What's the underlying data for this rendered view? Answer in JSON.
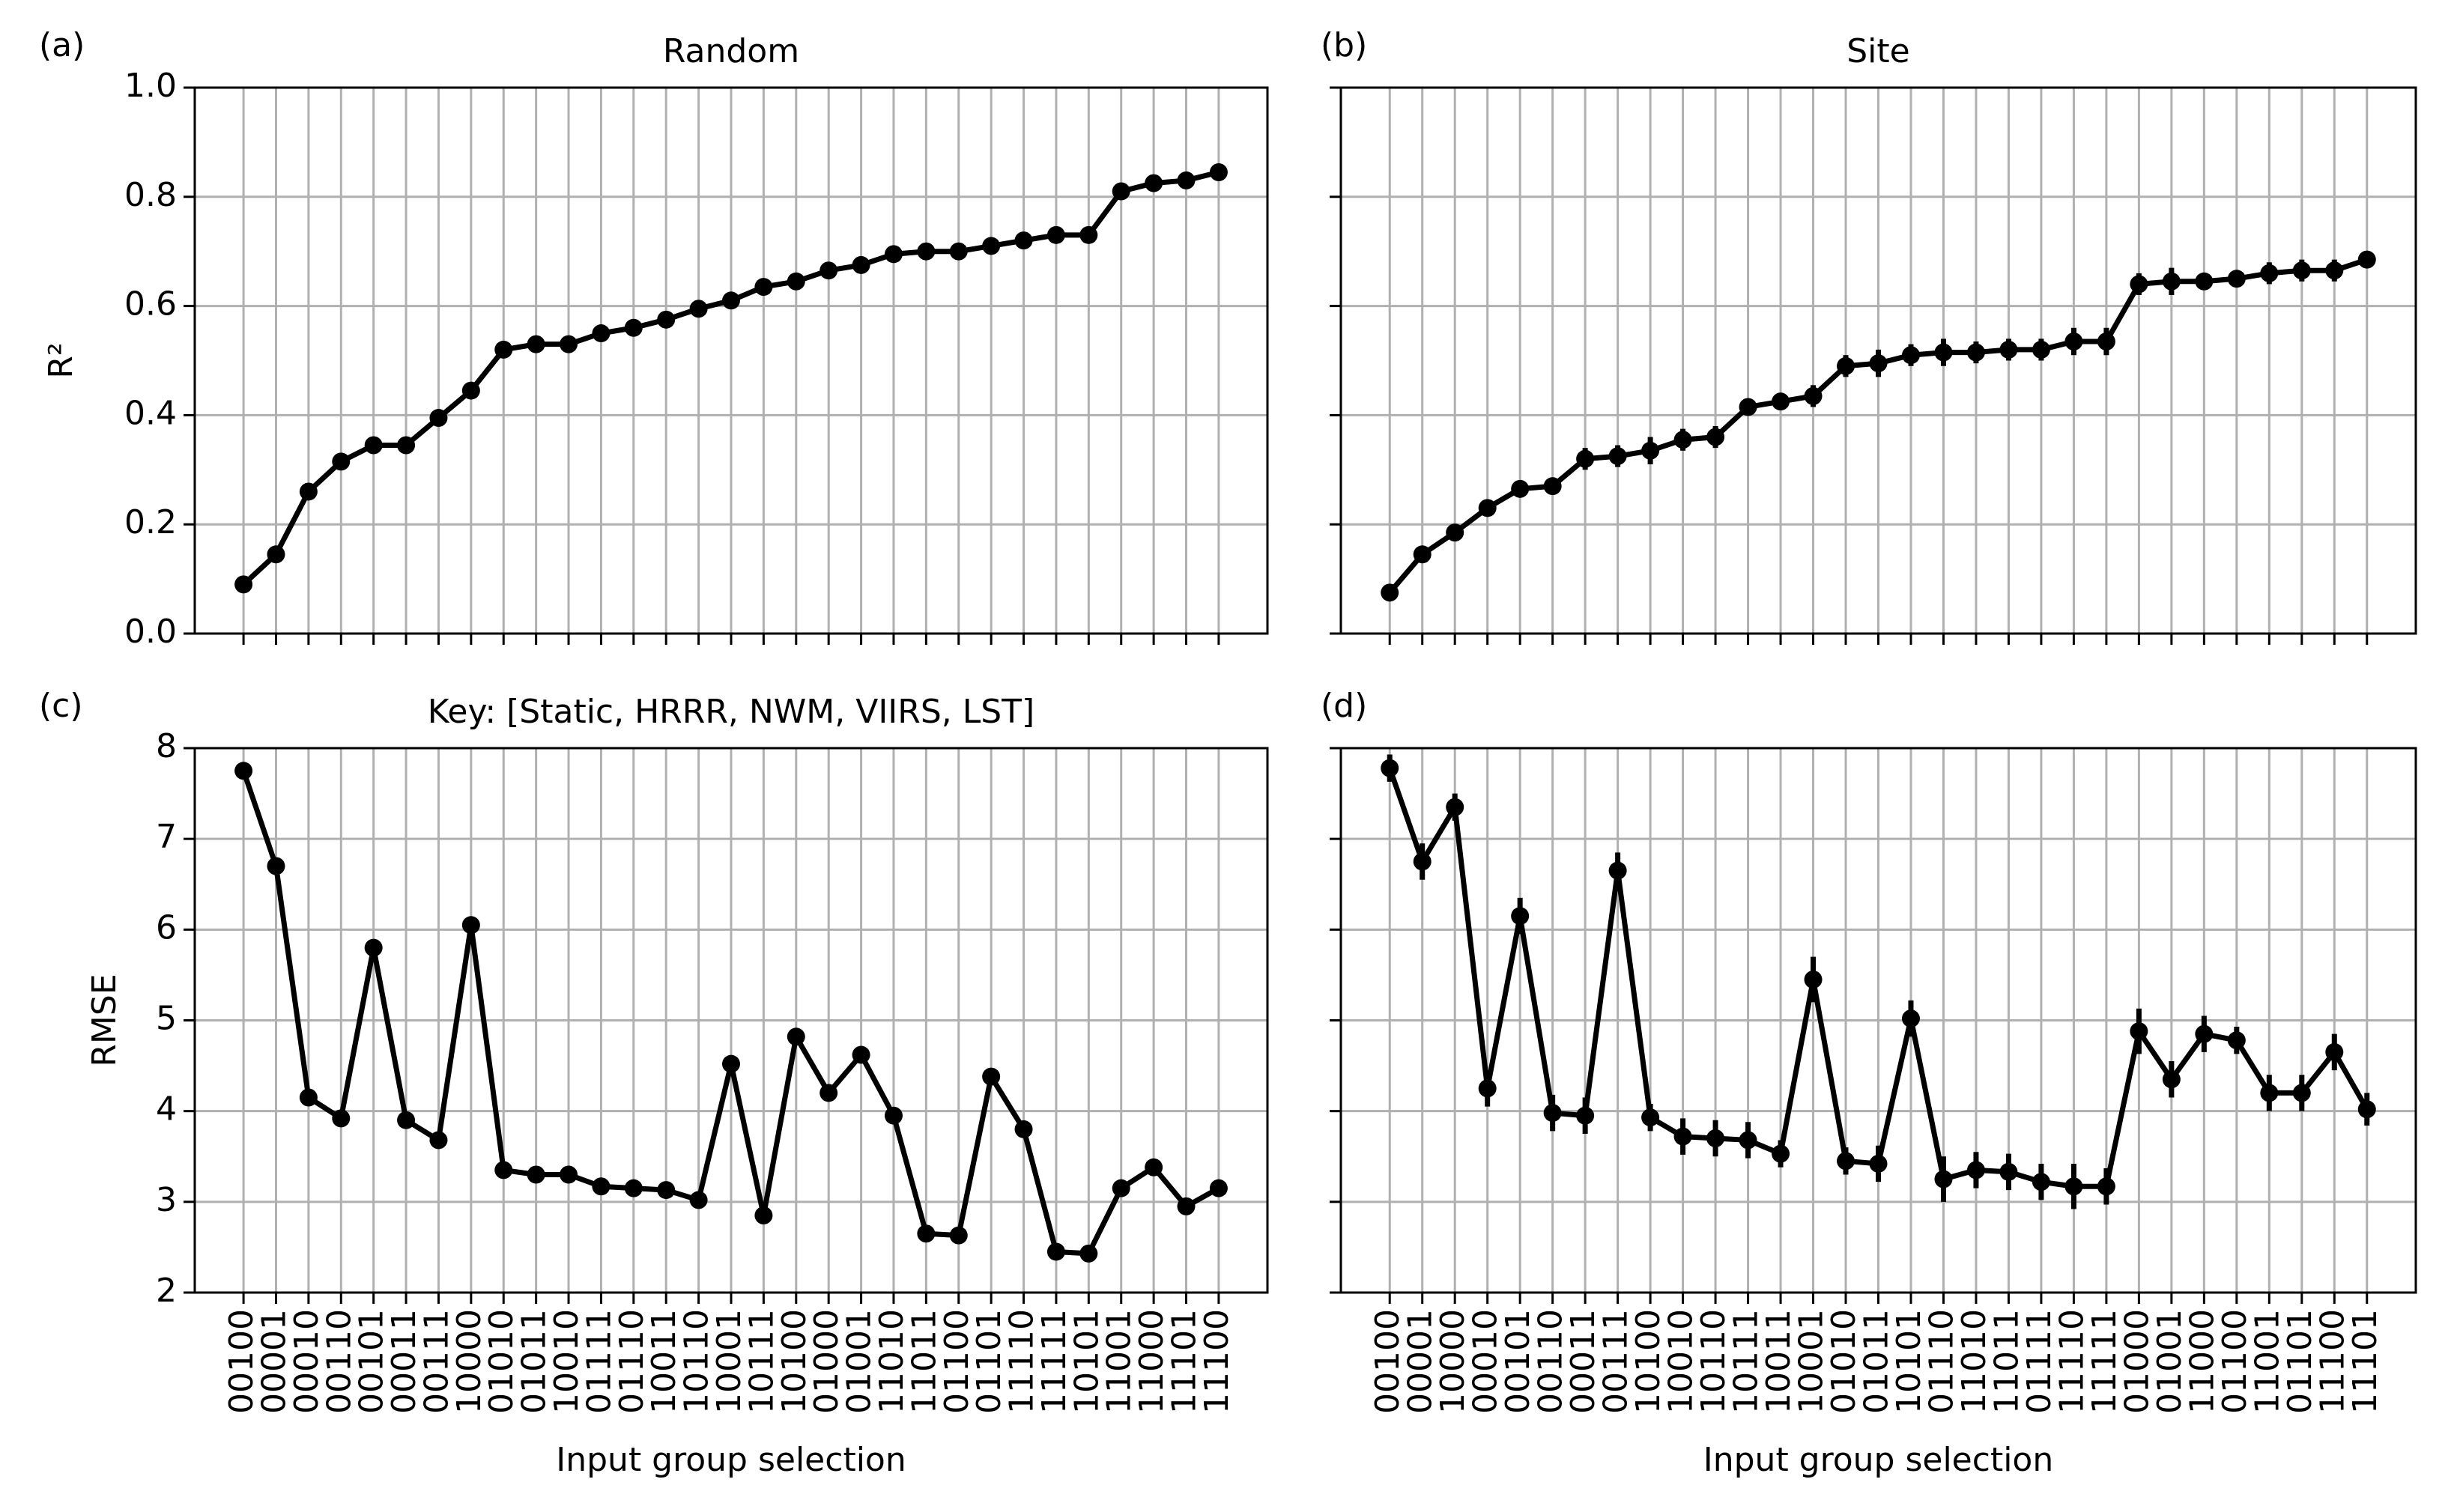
{
  "chart_data": [
    {
      "type": "line",
      "panel_label": "(a)",
      "title": "Random",
      "ylabel": "R²",
      "color": "#000000",
      "grid": true,
      "xtick_labels": false,
      "values": [
        0.09,
        0.145,
        0.26,
        0.315,
        0.345,
        0.345,
        0.395,
        0.445,
        0.52,
        0.53,
        0.53,
        0.55,
        0.56,
        0.575,
        0.595,
        0.61,
        0.635,
        0.645,
        0.665,
        0.675,
        0.695,
        0.7,
        0.7,
        0.71,
        0.72,
        0.73,
        0.73,
        0.81,
        0.825,
        0.83,
        0.845
      ],
      "ylim": [
        0,
        1
      ],
      "yticks": [
        {
          "value": 0,
          "label": "0.0"
        },
        0.2,
        0.4,
        0.6,
        0.8,
        {
          "value": 1,
          "label": "1.0"
        }
      ]
    },
    {
      "type": "line",
      "panel_label": "(b)",
      "title": "Site",
      "color": "#000000",
      "grid": true,
      "xtick_labels": false,
      "ytick_labels": false,
      "values": [
        0.075,
        0.145,
        0.185,
        0.23,
        0.265,
        0.27,
        0.32,
        0.325,
        0.335,
        0.355,
        0.36,
        0.415,
        0.425,
        0.435,
        0.49,
        0.495,
        0.51,
        0.515,
        0.515,
        0.52,
        0.52,
        0.535,
        0.535,
        0.64,
        0.645,
        0.645,
        0.65,
        0.66,
        0.665,
        0.665,
        0.685
      ],
      "errors": [
        0.015,
        0.015,
        0.015,
        0.015,
        0.015,
        0.015,
        0.02,
        0.02,
        0.025,
        0.02,
        0.02,
        0.015,
        0.015,
        0.02,
        0.02,
        0.025,
        0.02,
        0.025,
        0.02,
        0.02,
        0.02,
        0.025,
        0.025,
        0.02,
        0.025,
        0.015,
        0.015,
        0.02,
        0.02,
        0.02,
        0.015
      ],
      "ylim": [
        0,
        1
      ],
      "yticks": [
        {
          "value": 0,
          "label": "0.0"
        },
        0.2,
        0.4,
        0.6,
        0.8,
        {
          "value": 1,
          "label": "1.0"
        }
      ]
    },
    {
      "type": "line",
      "panel_label": "(c)",
      "title": "Key: [Static, HRRR, NWM, VIIRS, LST]",
      "ylabel": "RMSE",
      "xlabel": "Input group selection",
      "color": "#000000",
      "grid": true,
      "categories": [
        "00100",
        "00001",
        "00010",
        "00110",
        "00101",
        "00011",
        "00111",
        "10000",
        "01010",
        "01011",
        "10010",
        "01111",
        "01110",
        "10011",
        "10110",
        "10001",
        "10111",
        "10100",
        "01000",
        "01001",
        "11010",
        "11011",
        "01100",
        "01101",
        "11110",
        "11111",
        "10101",
        "11001",
        "11000",
        "11101",
        "11100"
      ],
      "values": [
        7.75,
        6.7,
        4.15,
        3.92,
        5.8,
        3.9,
        3.68,
        6.05,
        3.35,
        3.3,
        3.3,
        3.17,
        3.15,
        3.13,
        3.02,
        4.52,
        2.85,
        4.82,
        4.2,
        4.62,
        3.95,
        2.65,
        2.63,
        4.38,
        3.8,
        2.45,
        2.43,
        3.15,
        3.38,
        2.95,
        3.15
      ],
      "ylim": [
        2,
        8
      ],
      "yticks": [
        2,
        3,
        4,
        5,
        6,
        7,
        8
      ]
    },
    {
      "type": "line",
      "panel_label": "(d)",
      "xlabel": "Input group selection",
      "color": "#000000",
      "grid": true,
      "ytick_labels": false,
      "categories": [
        "00100",
        "00001",
        "10000",
        "00010",
        "00101",
        "00110",
        "00011",
        "00111",
        "10100",
        "10010",
        "10110",
        "10111",
        "10011",
        "10001",
        "01010",
        "01011",
        "10101",
        "01110",
        "11010",
        "11011",
        "01111",
        "11110",
        "11111",
        "01000",
        "01001",
        "11000",
        "01100",
        "11001",
        "01101",
        "11100",
        "11101"
      ],
      "values": [
        7.78,
        6.75,
        7.35,
        4.25,
        6.15,
        3.98,
        3.95,
        6.65,
        3.93,
        3.72,
        3.7,
        3.68,
        3.53,
        5.45,
        3.45,
        3.42,
        5.02,
        3.25,
        3.35,
        3.33,
        3.22,
        3.17,
        3.17,
        4.88,
        4.35,
        4.85,
        4.78,
        4.2,
        4.2,
        4.65,
        4.02
      ],
      "errors": [
        0.15,
        0.2,
        0.15,
        0.2,
        0.2,
        0.2,
        0.2,
        0.2,
        0.15,
        0.2,
        0.2,
        0.2,
        0.15,
        0.25,
        0.15,
        0.2,
        0.2,
        0.25,
        0.2,
        0.2,
        0.2,
        0.25,
        0.2,
        0.25,
        0.2,
        0.2,
        0.15,
        0.2,
        0.2,
        0.2,
        0.18
      ],
      "ylim": [
        2,
        8
      ],
      "yticks": [
        2,
        3,
        4,
        5,
        6,
        7,
        8
      ]
    }
  ]
}
